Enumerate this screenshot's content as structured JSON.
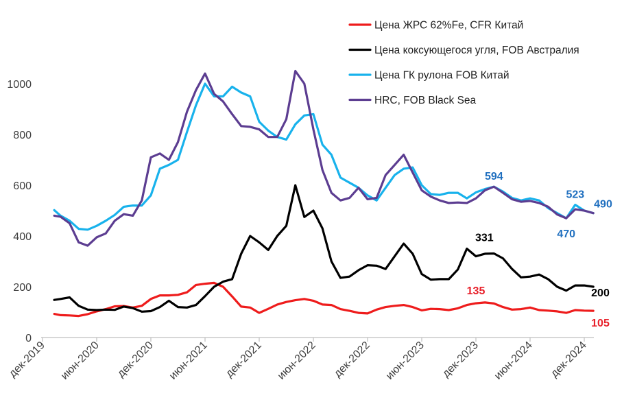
{
  "chart_data": {
    "type": "line",
    "title": "",
    "xlabel": "",
    "ylabel": "",
    "xlim": [
      0,
      60
    ],
    "ylim": [
      0,
      1100
    ],
    "x_ticks": [
      {
        "label": "дек-2019",
        "x": 0
      },
      {
        "label": "июн-2020",
        "x": 6
      },
      {
        "label": "дек-2020",
        "x": 12
      },
      {
        "label": "июн-2021",
        "x": 18
      },
      {
        "label": "дек-2021",
        "x": 24
      },
      {
        "label": "июн-2022",
        "x": 30
      },
      {
        "label": "дек-2022",
        "x": 36
      },
      {
        "label": "июн-2023",
        "x": 42
      },
      {
        "label": "дек-2023",
        "x": 48
      },
      {
        "label": "июн-2024",
        "x": 54
      },
      {
        "label": "дек-2024",
        "x": 60
      }
    ],
    "y_ticks": [
      {
        "label": "0",
        "v": 0
      },
      {
        "label": "200",
        "v": 200
      },
      {
        "label": "400",
        "v": 400
      },
      {
        "label": "600",
        "v": 600
      },
      {
        "label": "800",
        "v": 800
      },
      {
        "label": "1000",
        "v": 1000
      }
    ],
    "series": [
      {
        "name": "Цена ЖРС 62%Fe, CFR Китай",
        "color": "#ee1c1c",
        "points": [
          [
            1.3,
            93
          ],
          [
            2,
            88
          ],
          [
            3,
            87
          ],
          [
            4,
            85
          ],
          [
            5,
            92
          ],
          [
            6,
            103
          ],
          [
            7,
            112
          ],
          [
            8,
            123
          ],
          [
            9,
            124
          ],
          [
            10,
            118
          ],
          [
            11,
            125
          ],
          [
            12,
            152
          ],
          [
            13,
            166
          ],
          [
            14,
            166
          ],
          [
            15,
            168
          ],
          [
            16,
            178
          ],
          [
            17,
            207
          ],
          [
            18,
            212
          ],
          [
            19,
            215
          ],
          [
            20,
            200
          ],
          [
            21,
            162
          ],
          [
            22,
            122
          ],
          [
            23,
            118
          ],
          [
            24,
            97
          ],
          [
            25,
            113
          ],
          [
            26,
            130
          ],
          [
            27,
            140
          ],
          [
            28,
            147
          ],
          [
            29,
            152
          ],
          [
            30,
            145
          ],
          [
            31,
            130
          ],
          [
            32,
            128
          ],
          [
            33,
            112
          ],
          [
            34,
            105
          ],
          [
            35,
            97
          ],
          [
            36,
            95
          ],
          [
            37,
            110
          ],
          [
            38,
            120
          ],
          [
            39,
            125
          ],
          [
            40,
            128
          ],
          [
            41,
            120
          ],
          [
            42,
            107
          ],
          [
            43,
            113
          ],
          [
            44,
            112
          ],
          [
            45,
            108
          ],
          [
            46,
            115
          ],
          [
            47,
            128
          ],
          [
            48,
            135
          ],
          [
            49,
            138
          ],
          [
            50,
            134
          ],
          [
            51,
            120
          ],
          [
            52,
            110
          ],
          [
            53,
            112
          ],
          [
            54,
            118
          ],
          [
            55,
            108
          ],
          [
            56,
            106
          ],
          [
            57,
            103
          ],
          [
            58,
            97
          ],
          [
            59,
            108
          ],
          [
            60,
            106
          ],
          [
            61,
            105
          ]
        ]
      },
      {
        "name": "Цена коксующегося угля, FOB Австралия",
        "color": "#000000",
        "points": [
          [
            1.3,
            148
          ],
          [
            2,
            152
          ],
          [
            3,
            158
          ],
          [
            4,
            125
          ],
          [
            5,
            110
          ],
          [
            6,
            108
          ],
          [
            7,
            110
          ],
          [
            8,
            109
          ],
          [
            9,
            122
          ],
          [
            10,
            116
          ],
          [
            11,
            102
          ],
          [
            12,
            104
          ],
          [
            13,
            120
          ],
          [
            14,
            145
          ],
          [
            15,
            120
          ],
          [
            16,
            118
          ],
          [
            17,
            128
          ],
          [
            18,
            163
          ],
          [
            19,
            200
          ],
          [
            20,
            220
          ],
          [
            21,
            230
          ],
          [
            22,
            330
          ],
          [
            23,
            400
          ],
          [
            24,
            375
          ],
          [
            25,
            345
          ],
          [
            26,
            400
          ],
          [
            27,
            440
          ],
          [
            28,
            600
          ],
          [
            29,
            475
          ],
          [
            30,
            500
          ],
          [
            31,
            430
          ],
          [
            32,
            300
          ],
          [
            33,
            235
          ],
          [
            34,
            240
          ],
          [
            35,
            265
          ],
          [
            36,
            285
          ],
          [
            37,
            283
          ],
          [
            38,
            270
          ],
          [
            39,
            320
          ],
          [
            40,
            370
          ],
          [
            41,
            330
          ],
          [
            42,
            250
          ],
          [
            43,
            228
          ],
          [
            44,
            230
          ],
          [
            45,
            230
          ],
          [
            46,
            268
          ],
          [
            47,
            350
          ],
          [
            48,
            320
          ],
          [
            49,
            330
          ],
          [
            50,
            331
          ],
          [
            51,
            312
          ],
          [
            52,
            270
          ],
          [
            53,
            237
          ],
          [
            54,
            240
          ],
          [
            55,
            248
          ],
          [
            56,
            230
          ],
          [
            57,
            200
          ],
          [
            58,
            185
          ],
          [
            59,
            205
          ],
          [
            60,
            205
          ],
          [
            61,
            200
          ]
        ]
      },
      {
        "name": "Цена ГК рулона FOB Китай",
        "color": "#18b2ec",
        "points": [
          [
            1.3,
            502
          ],
          [
            2,
            480
          ],
          [
            3,
            460
          ],
          [
            4,
            428
          ],
          [
            5,
            425
          ],
          [
            6,
            440
          ],
          [
            7,
            460
          ],
          [
            8,
            483
          ],
          [
            9,
            515
          ],
          [
            10,
            520
          ],
          [
            11,
            520
          ],
          [
            12,
            560
          ],
          [
            13,
            665
          ],
          [
            14,
            680
          ],
          [
            15,
            700
          ],
          [
            16,
            810
          ],
          [
            17,
            915
          ],
          [
            18,
            1000
          ],
          [
            19,
            950
          ],
          [
            20,
            950
          ],
          [
            21,
            988
          ],
          [
            22,
            965
          ],
          [
            23,
            950
          ],
          [
            24,
            850
          ],
          [
            25,
            815
          ],
          [
            26,
            790
          ],
          [
            27,
            780
          ],
          [
            28,
            840
          ],
          [
            29,
            875
          ],
          [
            30,
            880
          ],
          [
            31,
            760
          ],
          [
            32,
            720
          ],
          [
            33,
            630
          ],
          [
            34,
            610
          ],
          [
            35,
            590
          ],
          [
            36,
            560
          ],
          [
            37,
            540
          ],
          [
            38,
            590
          ],
          [
            39,
            640
          ],
          [
            40,
            665
          ],
          [
            41,
            670
          ],
          [
            42,
            600
          ],
          [
            43,
            565
          ],
          [
            44,
            562
          ],
          [
            45,
            570
          ],
          [
            46,
            570
          ],
          [
            47,
            548
          ],
          [
            48,
            572
          ],
          [
            49,
            585
          ],
          [
            50,
            594
          ],
          [
            51,
            575
          ],
          [
            52,
            550
          ],
          [
            53,
            540
          ],
          [
            54,
            548
          ],
          [
            55,
            540
          ],
          [
            56,
            510
          ],
          [
            57,
            490
          ],
          [
            58,
            470
          ],
          [
            59,
            523
          ],
          [
            60,
            500
          ],
          [
            61,
            490
          ]
        ]
      },
      {
        "name": "HRC, FOB Black Sea",
        "color": "#5c3d91",
        "points": [
          [
            1.3,
            480
          ],
          [
            2,
            476
          ],
          [
            3,
            450
          ],
          [
            4,
            375
          ],
          [
            5,
            362
          ],
          [
            6,
            395
          ],
          [
            7,
            410
          ],
          [
            8,
            460
          ],
          [
            9,
            486
          ],
          [
            10,
            480
          ],
          [
            11,
            540
          ],
          [
            12,
            710
          ],
          [
            13,
            725
          ],
          [
            14,
            700
          ],
          [
            15,
            770
          ],
          [
            16,
            890
          ],
          [
            17,
            975
          ],
          [
            18,
            1040
          ],
          [
            19,
            960
          ],
          [
            20,
            930
          ],
          [
            21,
            880
          ],
          [
            22,
            833
          ],
          [
            23,
            830
          ],
          [
            24,
            820
          ],
          [
            25,
            790
          ],
          [
            26,
            790
          ],
          [
            27,
            860
          ],
          [
            28,
            1050
          ],
          [
            29,
            1000
          ],
          [
            30,
            820
          ],
          [
            31,
            660
          ],
          [
            32,
            570
          ],
          [
            33,
            540
          ],
          [
            34,
            550
          ],
          [
            35,
            590
          ],
          [
            36,
            545
          ],
          [
            37,
            550
          ],
          [
            38,
            640
          ],
          [
            39,
            680
          ],
          [
            40,
            720
          ],
          [
            41,
            650
          ],
          [
            42,
            580
          ],
          [
            43,
            555
          ],
          [
            44,
            540
          ],
          [
            45,
            530
          ],
          [
            46,
            532
          ],
          [
            47,
            530
          ],
          [
            48,
            548
          ],
          [
            49,
            580
          ],
          [
            50,
            594
          ],
          [
            51,
            570
          ],
          [
            52,
            545
          ],
          [
            53,
            535
          ],
          [
            54,
            538
          ],
          [
            55,
            530
          ],
          [
            56,
            515
          ],
          [
            57,
            485
          ],
          [
            58,
            470
          ],
          [
            59,
            505
          ],
          [
            60,
            500
          ],
          [
            61,
            490
          ]
        ]
      }
    ],
    "data_labels": [
      {
        "text": "594",
        "x": 50,
        "y": 594,
        "color": "#1f6fbf"
      },
      {
        "text": "523",
        "x": 59,
        "y": 523,
        "color": "#1f6fbf"
      },
      {
        "text": "470",
        "x": 58,
        "y": 470,
        "color": "#1f6fbf"
      },
      {
        "text": "490",
        "x": 61,
        "y": 490,
        "color": "#1f6fbf"
      },
      {
        "text": "331",
        "x": 50,
        "y": 331,
        "color": "#000000"
      },
      {
        "text": "200",
        "x": 61,
        "y": 200,
        "color": "#000000"
      },
      {
        "text": "135",
        "x": 48,
        "y": 135,
        "color": "#e8202a"
      },
      {
        "text": "105",
        "x": 61,
        "y": 105,
        "color": "#e8202a"
      }
    ],
    "legend": {
      "position": "top-right"
    }
  }
}
